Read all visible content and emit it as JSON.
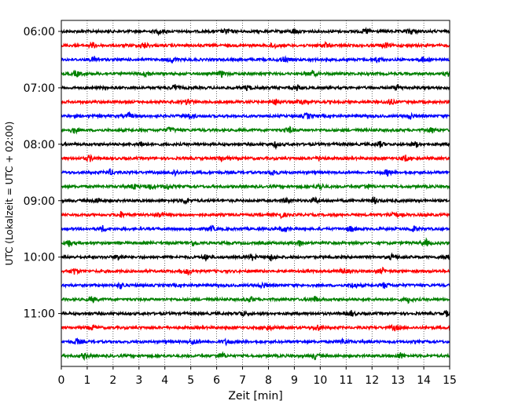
{
  "chart_data": {
    "type": "line",
    "chart_kind": "helicorder seismogram",
    "xlabel": "Zeit  [min]",
    "ylabel": "UTC (Lokalzeit = UTC + 02:00)",
    "xlim": [
      0,
      15
    ],
    "x_ticks": [
      0,
      1,
      2,
      3,
      4,
      5,
      6,
      7,
      8,
      9,
      10,
      11,
      12,
      13,
      14,
      15
    ],
    "x_tick_labels": [
      "0",
      "1",
      "2",
      "3",
      "4",
      "5",
      "6",
      "7",
      "8",
      "9",
      "10",
      "11",
      "12",
      "13",
      "14",
      "15"
    ],
    "y_tick_labels": [
      "06:00",
      "07:00",
      "08:00",
      "09:00",
      "10:00",
      "11:00"
    ],
    "y_tick_trace_index": [
      0,
      4,
      8,
      12,
      16,
      20
    ],
    "grid_x": true,
    "trace_interval_minutes": 15,
    "trace_count": 24,
    "trace_colors": [
      "#000000",
      "#ff0000",
      "#0000ff",
      "#008000"
    ],
    "traces": [
      {
        "start": "06:00",
        "color": "#000000",
        "events": [
          3.8,
          6.4,
          9.0,
          11.8,
          13.5
        ]
      },
      {
        "start": "06:15",
        "color": "#ff0000",
        "events": [
          1.2,
          3.2,
          8.2,
          10.2,
          12.5
        ]
      },
      {
        "start": "06:30",
        "color": "#0000ff",
        "events": [
          1.3,
          4.3,
          8.6,
          12.2,
          14.0
        ]
      },
      {
        "start": "06:45",
        "color": "#008000",
        "events": [
          0.6,
          3.3,
          6.2,
          9.7,
          15.0
        ]
      },
      {
        "start": "07:00",
        "color": "#000000",
        "events": [
          4.4,
          7.2,
          9.1,
          13.0
        ]
      },
      {
        "start": "07:15",
        "color": "#ff0000",
        "events": [
          4.9,
          8.3,
          9.3,
          12.7
        ]
      },
      {
        "start": "07:30",
        "color": "#0000ff",
        "events": [
          2.6,
          5.0,
          9.5,
          13.5
        ]
      },
      {
        "start": "07:45",
        "color": "#008000",
        "events": [
          0.5,
          4.2,
          8.8,
          14.3
        ]
      },
      {
        "start": "08:00",
        "color": "#000000",
        "events": [
          3.1,
          8.3,
          12.3,
          13.7
        ]
      },
      {
        "start": "08:15",
        "color": "#ff0000",
        "events": [
          1.1,
          6.2,
          10.0,
          13.3
        ]
      },
      {
        "start": "08:30",
        "color": "#0000ff",
        "events": [
          1.9,
          4.4,
          8.2,
          12.6
        ]
      },
      {
        "start": "08:45",
        "color": "#008000",
        "events": [
          2.8,
          3.4,
          4.1,
          10.0,
          11.8
        ]
      },
      {
        "start": "09:00",
        "color": "#000000",
        "events": [
          1.4,
          4.8,
          8.7,
          9.8,
          12.1
        ]
      },
      {
        "start": "09:15",
        "color": "#ff0000",
        "events": [
          2.3,
          3.8,
          8.5,
          12.8
        ]
      },
      {
        "start": "09:30",
        "color": "#0000ff",
        "events": [
          1.6,
          5.8,
          8.6,
          11.2,
          13.6
        ]
      },
      {
        "start": "09:45",
        "color": "#008000",
        "events": [
          0.3,
          5.1,
          9.2,
          14.1
        ]
      },
      {
        "start": "10:00",
        "color": "#000000",
        "events": [
          2.2,
          5.6,
          7.4,
          8.1,
          12.8,
          14.9
        ]
      },
      {
        "start": "10:15",
        "color": "#ff0000",
        "events": [
          0.5,
          4.9,
          10.9,
          12.4
        ]
      },
      {
        "start": "10:30",
        "color": "#0000ff",
        "events": [
          2.3,
          7.8,
          11.3,
          12.5
        ]
      },
      {
        "start": "10:45",
        "color": "#008000",
        "events": [
          1.2,
          7.3,
          9.8,
          13.4
        ]
      },
      {
        "start": "11:00",
        "color": "#000000",
        "events": [
          7.0,
          11.2,
          14.9
        ]
      },
      {
        "start": "11:15",
        "color": "#ff0000",
        "events": [
          1.2,
          8.0,
          9.9,
          12.9
        ]
      },
      {
        "start": "11:30",
        "color": "#0000ff",
        "events": [
          0.6,
          5.1,
          6.4,
          10.9
        ]
      },
      {
        "start": "11:45",
        "color": "#008000",
        "events": [
          0.9,
          6.2,
          9.8,
          13.1
        ]
      }
    ]
  }
}
